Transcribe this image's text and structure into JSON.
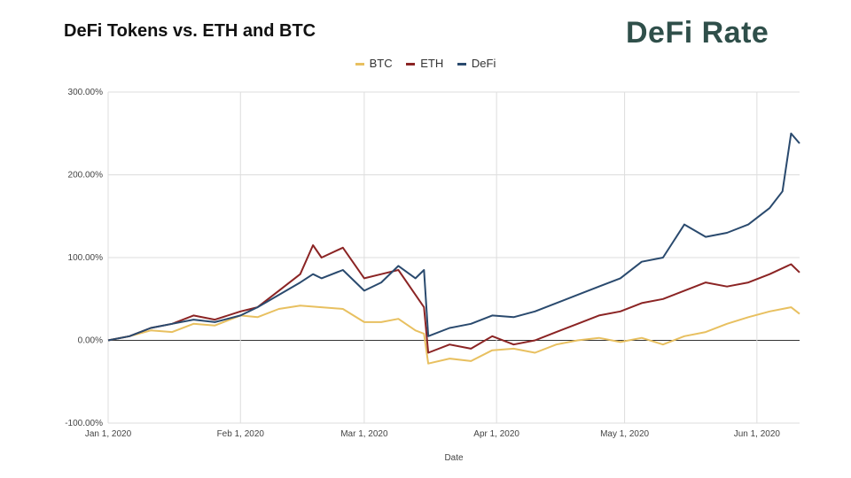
{
  "header": {
    "title": "DeFi Tokens vs. ETH and BTC"
  },
  "logo": {
    "text": "DeFi Rate"
  },
  "chart_data": {
    "type": "line",
    "title": "DeFi Tokens vs. ETH and BTC",
    "xlabel": "Date",
    "ylabel": "",
    "x_ticks": [
      "Jan 1, 2020",
      "Feb 1, 2020",
      "Mar 1, 2020",
      "Apr 1, 2020",
      "May 1, 2020",
      "Jun 1, 2020"
    ],
    "y_ticks": [
      "300.00%",
      "200.00%",
      "100.00%",
      "0.00%",
      "-100.00%"
    ],
    "ylim": [
      -100,
      300
    ],
    "xlim_days": [
      0,
      162
    ],
    "legend_position": "top-center",
    "grid": true,
    "series": [
      {
        "name": "BTC",
        "color": "#e8c060",
        "points": [
          [
            0,
            0
          ],
          [
            5,
            5
          ],
          [
            10,
            12
          ],
          [
            15,
            10
          ],
          [
            20,
            20
          ],
          [
            25,
            18
          ],
          [
            31,
            30
          ],
          [
            35,
            28
          ],
          [
            40,
            38
          ],
          [
            45,
            42
          ],
          [
            50,
            40
          ],
          [
            55,
            38
          ],
          [
            60,
            22
          ],
          [
            64,
            22
          ],
          [
            68,
            26
          ],
          [
            72,
            12
          ],
          [
            74,
            8
          ],
          [
            75,
            -28
          ],
          [
            80,
            -22
          ],
          [
            85,
            -25
          ],
          [
            90,
            -12
          ],
          [
            95,
            -10
          ],
          [
            100,
            -15
          ],
          [
            105,
            -5
          ],
          [
            110,
            0
          ],
          [
            115,
            3
          ],
          [
            120,
            -2
          ],
          [
            125,
            3
          ],
          [
            130,
            -5
          ],
          [
            135,
            5
          ],
          [
            140,
            10
          ],
          [
            145,
            20
          ],
          [
            150,
            28
          ],
          [
            155,
            35
          ],
          [
            160,
            40
          ],
          [
            162,
            32
          ]
        ]
      },
      {
        "name": "ETH",
        "color": "#8b2424",
        "points": [
          [
            0,
            0
          ],
          [
            5,
            5
          ],
          [
            10,
            15
          ],
          [
            15,
            20
          ],
          [
            20,
            30
          ],
          [
            25,
            25
          ],
          [
            31,
            35
          ],
          [
            35,
            40
          ],
          [
            40,
            60
          ],
          [
            45,
            80
          ],
          [
            48,
            115
          ],
          [
            50,
            100
          ],
          [
            55,
            112
          ],
          [
            60,
            75
          ],
          [
            64,
            80
          ],
          [
            68,
            85
          ],
          [
            72,
            55
          ],
          [
            74,
            40
          ],
          [
            75,
            -15
          ],
          [
            80,
            -5
          ],
          [
            85,
            -10
          ],
          [
            90,
            5
          ],
          [
            95,
            -5
          ],
          [
            100,
            0
          ],
          [
            105,
            10
          ],
          [
            110,
            20
          ],
          [
            115,
            30
          ],
          [
            120,
            35
          ],
          [
            125,
            45
          ],
          [
            130,
            50
          ],
          [
            135,
            60
          ],
          [
            140,
            70
          ],
          [
            145,
            65
          ],
          [
            150,
            70
          ],
          [
            155,
            80
          ],
          [
            160,
            92
          ],
          [
            162,
            82
          ]
        ]
      },
      {
        "name": "DeFi",
        "color": "#2a4a6e",
        "points": [
          [
            0,
            0
          ],
          [
            5,
            5
          ],
          [
            10,
            15
          ],
          [
            15,
            20
          ],
          [
            20,
            25
          ],
          [
            25,
            22
          ],
          [
            31,
            30
          ],
          [
            35,
            40
          ],
          [
            40,
            55
          ],
          [
            45,
            70
          ],
          [
            48,
            80
          ],
          [
            50,
            75
          ],
          [
            55,
            85
          ],
          [
            60,
            60
          ],
          [
            64,
            70
          ],
          [
            68,
            90
          ],
          [
            72,
            75
          ],
          [
            74,
            85
          ],
          [
            75,
            5
          ],
          [
            80,
            15
          ],
          [
            85,
            20
          ],
          [
            90,
            30
          ],
          [
            95,
            28
          ],
          [
            100,
            35
          ],
          [
            105,
            45
          ],
          [
            110,
            55
          ],
          [
            115,
            65
          ],
          [
            120,
            75
          ],
          [
            125,
            95
          ],
          [
            130,
            100
          ],
          [
            135,
            140
          ],
          [
            140,
            125
          ],
          [
            145,
            130
          ],
          [
            150,
            140
          ],
          [
            155,
            160
          ],
          [
            158,
            180
          ],
          [
            160,
            250
          ],
          [
            162,
            238
          ]
        ]
      }
    ]
  }
}
